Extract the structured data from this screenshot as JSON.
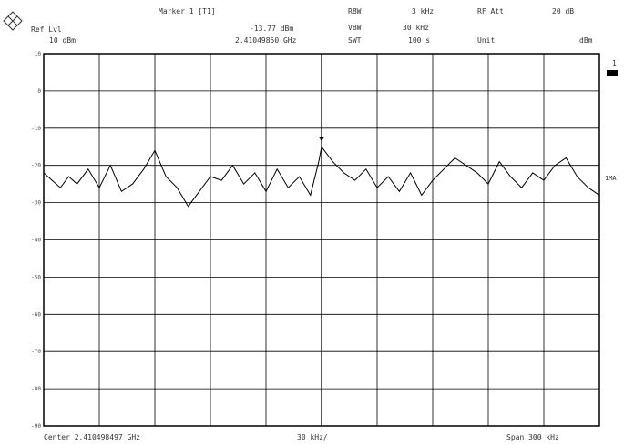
{
  "header": {
    "ref_lvl_label": "Ref Lvl",
    "ref_lvl_value": "10 dBm",
    "marker_label": "Marker 1 [T1]",
    "marker_level": "-13.77 dBm",
    "marker_freq": "2.41049850 GHz",
    "rbw_label": "RBW",
    "rbw_value": "3 kHz",
    "vbw_label": "VBW",
    "vbw_value": "30 kHz",
    "swt_label": "SWT",
    "swt_value": "100 s",
    "rf_att_label": "RF Att",
    "rf_att_value": "20 dB",
    "unit_label": "Unit",
    "unit_value": "dBm"
  },
  "footer": {
    "center": "Center 2.410498497 GHz",
    "div": "30 kHz/",
    "span": "Span 300 kHz"
  },
  "side": {
    "trace_tag": "1MA",
    "marker_glyph": "1"
  },
  "icons": {
    "logo": "rohde-schwarz-logo-icon"
  },
  "colors": {
    "background": "#ffffff",
    "grid": "#000000",
    "trace": "#000000"
  },
  "chart_data": {
    "type": "line",
    "xlabel": "",
    "ylabel": "",
    "ylim": [
      -90,
      10
    ],
    "yticks": [
      10,
      0,
      -10,
      -20,
      -30,
      -40,
      -50,
      -60,
      -70,
      -80,
      -90
    ],
    "ytick_labels": [
      "10",
      "0",
      "-10",
      "-20",
      "-30",
      "-40",
      "-50",
      "-60",
      "-70",
      "-80",
      "-90"
    ],
    "x_divisions": 10,
    "grid": true,
    "marker": {
      "x_div": 5.0,
      "y": -13.77
    },
    "series": [
      {
        "x_div": [
          0.0,
          0.15,
          0.3,
          0.45,
          0.6,
          0.8,
          1.0,
          1.2,
          1.4,
          1.6,
          1.8,
          2.0,
          2.2,
          2.4,
          2.6,
          2.8,
          3.0,
          3.2,
          3.4,
          3.6,
          3.8,
          4.0,
          4.2,
          4.4,
          4.6,
          4.8,
          4.95,
          5.0,
          5.2,
          5.4,
          5.6,
          5.8,
          6.0,
          6.2,
          6.4,
          6.6,
          6.8,
          7.0,
          7.2,
          7.4,
          7.6,
          7.8,
          8.0,
          8.2,
          8.4,
          8.6,
          8.8,
          9.0,
          9.2,
          9.4,
          9.6,
          9.8,
          10.0
        ],
        "y": [
          -22,
          -24,
          -26,
          -23,
          -25,
          -21,
          -26,
          -20,
          -27,
          -25,
          -21,
          -16,
          -23,
          -26,
          -31,
          -27,
          -23,
          -24,
          -20,
          -25,
          -22,
          -27,
          -21,
          -26,
          -23,
          -28,
          -19,
          -15,
          -19,
          -22,
          -24,
          -21,
          -26,
          -23,
          -27,
          -22,
          -28,
          -24,
          -21,
          -18,
          -20,
          -22,
          -25,
          -19,
          -23,
          -26,
          -22,
          -24,
          -20,
          -18,
          -23,
          -26,
          -28
        ]
      }
    ]
  }
}
